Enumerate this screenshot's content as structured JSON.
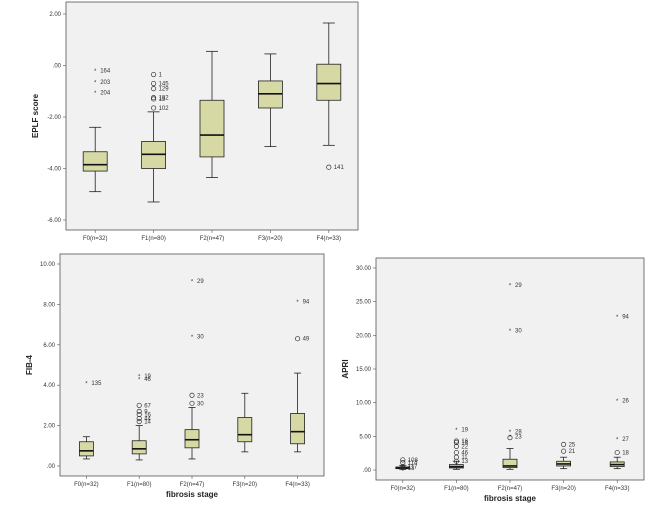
{
  "chart_data": [
    {
      "type": "box",
      "title": "",
      "ylabel": "EPLF score",
      "xlabel": "",
      "ylim": [
        -6,
        2
      ],
      "yticks": [
        "2.00",
        ".00",
        "-2.00",
        "-4.00",
        "-6.00"
      ],
      "ytick_values": [
        2,
        0,
        -2,
        -4,
        -6
      ],
      "categories": [
        "F0(n=32)",
        "F1(n=80)",
        "F2(n=47)",
        "F3(n=20)",
        "F4(n=33)"
      ],
      "box_color": "#d7d9a4",
      "boxes": [
        {
          "min": -4.9,
          "q1": -4.1,
          "median": -3.85,
          "q3": -3.35,
          "max": -2.4
        },
        {
          "min": -5.3,
          "q1": -4.0,
          "median": -3.45,
          "q3": -2.95,
          "max": -1.8
        },
        {
          "min": -4.35,
          "q1": -3.55,
          "median": -2.7,
          "q3": -1.35,
          "max": 0.55
        },
        {
          "min": -3.15,
          "q1": -1.65,
          "median": -1.1,
          "q3": -0.6,
          "max": 0.45
        },
        {
          "min": -3.1,
          "q1": -1.35,
          "median": -0.7,
          "q3": 0.05,
          "max": 1.65
        }
      ],
      "outliers": [
        {
          "cat": 0,
          "y": -0.2,
          "label": "164",
          "marker": "star"
        },
        {
          "cat": 0,
          "y": -0.65,
          "label": "203",
          "marker": "star"
        },
        {
          "cat": 0,
          "y": -1.05,
          "label": "204",
          "marker": "star"
        },
        {
          "cat": 1,
          "y": -0.35,
          "label": "1",
          "marker": "circle"
        },
        {
          "cat": 1,
          "y": -0.7,
          "label": "145",
          "marker": "circle"
        },
        {
          "cat": 1,
          "y": -0.9,
          "label": "129",
          "marker": "circle"
        },
        {
          "cat": 1,
          "y": -1.25,
          "label": "182",
          "marker": "circle"
        },
        {
          "cat": 1,
          "y": -1.3,
          "label": "13",
          "marker": "circle"
        },
        {
          "cat": 1,
          "y": -1.65,
          "label": "102",
          "marker": "circle"
        },
        {
          "cat": 4,
          "y": -3.95,
          "label": "141",
          "marker": "circle"
        }
      ]
    },
    {
      "type": "box",
      "title": "",
      "ylabel": "FIB-4",
      "xlabel": "fibrosis stage",
      "ylim": [
        0,
        10
      ],
      "yticks": [
        "10.00",
        "8.00",
        "6.00",
        "4.00",
        "2.00",
        ".00"
      ],
      "ytick_values": [
        10,
        8,
        6,
        4,
        2,
        0
      ],
      "categories": [
        "F0(n=32)",
        "F1(n=80)",
        "F2(n=47)",
        "F3(n=20)",
        "F4(n=33)"
      ],
      "box_color": "#d7d9a4",
      "boxes": [
        {
          "min": 0.35,
          "q1": 0.5,
          "median": 0.75,
          "q3": 1.2,
          "max": 1.45
        },
        {
          "min": 0.3,
          "q1": 0.6,
          "median": 0.85,
          "q3": 1.25,
          "max": 2.0
        },
        {
          "min": 0.35,
          "q1": 0.9,
          "median": 1.3,
          "q3": 1.8,
          "max": 2.9
        },
        {
          "min": 0.7,
          "q1": 1.2,
          "median": 1.55,
          "q3": 2.4,
          "max": 3.6
        },
        {
          "min": 0.7,
          "q1": 1.1,
          "median": 1.7,
          "q3": 2.6,
          "max": 4.6
        }
      ],
      "outliers": [
        {
          "cat": 0,
          "y": 4.1,
          "label": "135",
          "marker": "star"
        },
        {
          "cat": 1,
          "y": 4.45,
          "label": "19",
          "marker": "star"
        },
        {
          "cat": 1,
          "y": 4.3,
          "label": "46",
          "marker": "star"
        },
        {
          "cat": 1,
          "y": 3.0,
          "label": "67",
          "marker": "circle"
        },
        {
          "cat": 1,
          "y": 2.7,
          "label": "9",
          "marker": "circle"
        },
        {
          "cat": 1,
          "y": 2.55,
          "label": "16",
          "marker": "circle"
        },
        {
          "cat": 1,
          "y": 2.35,
          "label": "44",
          "marker": "circle"
        },
        {
          "cat": 1,
          "y": 2.2,
          "label": "14",
          "marker": "circle"
        },
        {
          "cat": 2,
          "y": 9.15,
          "label": "29",
          "marker": "star"
        },
        {
          "cat": 2,
          "y": 6.4,
          "label": "30",
          "marker": "star"
        },
        {
          "cat": 2,
          "y": 3.5,
          "label": "23",
          "marker": "circle"
        },
        {
          "cat": 2,
          "y": 3.1,
          "label": "30",
          "marker": "circle"
        },
        {
          "cat": 4,
          "y": 8.15,
          "label": "94",
          "marker": "star"
        },
        {
          "cat": 4,
          "y": 6.3,
          "label": "49",
          "marker": "circle"
        }
      ]
    },
    {
      "type": "box",
      "title": "",
      "ylabel": "APRI",
      "xlabel": "fibrosis stage",
      "ylim": [
        0,
        30
      ],
      "yticks": [
        "30.00",
        "25.00",
        "20.00",
        "15.00",
        "10.00",
        "5.00",
        ".00"
      ],
      "ytick_values": [
        30,
        25,
        20,
        15,
        10,
        5,
        0
      ],
      "categories": [
        "F0(n=32)",
        "F1(n=80)",
        "F2(n=47)",
        "F3(n=20)",
        "F4(n=33)"
      ],
      "box_color": "#d7d9a4",
      "boxes": [
        {
          "min": 0.1,
          "q1": 0.2,
          "median": 0.3,
          "q3": 0.45,
          "max": 0.7
        },
        {
          "min": 0.1,
          "q1": 0.3,
          "median": 0.5,
          "q3": 0.8,
          "max": 1.3
        },
        {
          "min": 0.1,
          "q1": 0.35,
          "median": 0.6,
          "q3": 1.6,
          "max": 3.2
        },
        {
          "min": 0.2,
          "q1": 0.6,
          "median": 0.9,
          "q3": 1.3,
          "max": 1.9
        },
        {
          "min": 0.2,
          "q1": 0.5,
          "median": 0.8,
          "q3": 1.2,
          "max": 1.9
        }
      ],
      "outliers": [
        {
          "cat": 0,
          "y": 1.5,
          "label": "108",
          "marker": "circle"
        },
        {
          "cat": 0,
          "y": 1.1,
          "label": "114",
          "marker": "circle"
        },
        {
          "cat": 0,
          "y": 0.5,
          "label": "117",
          "marker": "circle"
        },
        {
          "cat": 0,
          "y": 0.3,
          "label": "13",
          "marker": "circle"
        },
        {
          "cat": 1,
          "y": 6.0,
          "label": "19",
          "marker": "star"
        },
        {
          "cat": 1,
          "y": 4.3,
          "label": "16",
          "marker": "circle"
        },
        {
          "cat": 1,
          "y": 4.1,
          "label": "14",
          "marker": "circle"
        },
        {
          "cat": 1,
          "y": 3.5,
          "label": "22",
          "marker": "circle"
        },
        {
          "cat": 1,
          "y": 2.6,
          "label": "46",
          "marker": "circle"
        },
        {
          "cat": 1,
          "y": 1.9,
          "label": "11",
          "marker": "circle"
        },
        {
          "cat": 1,
          "y": 1.3,
          "label": "13",
          "marker": "circle"
        },
        {
          "cat": 2,
          "y": 27.5,
          "label": "29",
          "marker": "star"
        },
        {
          "cat": 2,
          "y": 20.7,
          "label": "30",
          "marker": "star"
        },
        {
          "cat": 2,
          "y": 5.7,
          "label": "28",
          "marker": "star"
        },
        {
          "cat": 2,
          "y": 5.0,
          "label": "23",
          "marker": "star"
        },
        {
          "cat": 2,
          "y": 4.8,
          "label": "",
          "marker": "circle"
        },
        {
          "cat": 3,
          "y": 3.8,
          "label": "25",
          "marker": "circle"
        },
        {
          "cat": 3,
          "y": 2.8,
          "label": "21",
          "marker": "circle"
        },
        {
          "cat": 4,
          "y": 22.8,
          "label": "94",
          "marker": "star"
        },
        {
          "cat": 4,
          "y": 10.3,
          "label": "26",
          "marker": "star"
        },
        {
          "cat": 4,
          "y": 4.6,
          "label": "27",
          "marker": "star"
        },
        {
          "cat": 4,
          "y": 2.6,
          "label": "18",
          "marker": "circle"
        }
      ]
    }
  ]
}
